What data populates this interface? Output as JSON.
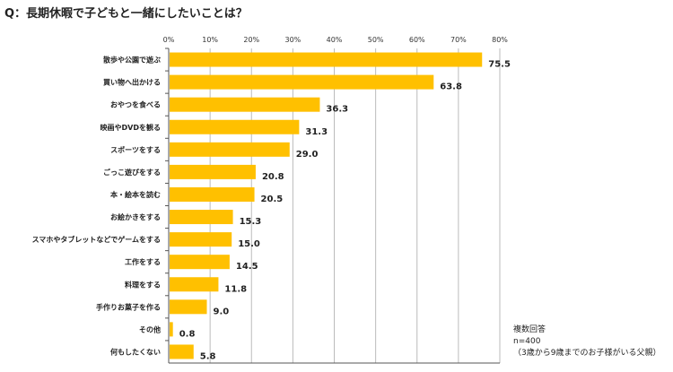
{
  "chart_data": {
    "type": "bar",
    "orientation": "horizontal",
    "title": "Q：長期休暇で子どもと一緒にしたいことは？",
    "categories": [
      "散歩や公園で遊ぶ",
      "買い物へ出かける",
      "おやつを食べる",
      "映画やDVDを観る",
      "スポーツをする",
      "ごっこ遊びをする",
      "本・絵本を読む",
      "お絵かきをする",
      "スマホやタブレットなどでゲームをする",
      "工作をする",
      "料理をする",
      "手作りお菓子を作る",
      "その他",
      "何もしたくない"
    ],
    "values": [
      75.5,
      63.8,
      36.3,
      31.3,
      29.0,
      20.8,
      20.5,
      15.3,
      15.0,
      14.5,
      11.8,
      9.0,
      0.8,
      5.8
    ],
    "value_labels": [
      "75.5",
      "63.8",
      "36.3",
      "31.3",
      "29.0",
      "20.8",
      "20.5",
      "15.3",
      "15.0",
      "14.5",
      "11.8",
      "9.0",
      "0.8",
      "5.8"
    ],
    "xlim": [
      0,
      80
    ],
    "xticks": [
      "0%",
      "10%",
      "20%",
      "30%",
      "40%",
      "50%",
      "60%",
      "70%",
      "80%"
    ],
    "grid": true,
    "bar_color": "#FFC000"
  },
  "note": {
    "line1": "複数回答",
    "line2": "n=400",
    "line3": "（3歳から9歳までのお子様がいる父親）"
  }
}
